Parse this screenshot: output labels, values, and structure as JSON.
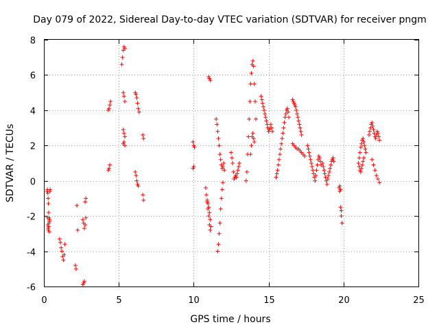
{
  "chart_data": {
    "type": "scatter",
    "title": "Day 079 of 2022, Sidereal Day-to-day VTEC variation (SDTVAR) for receiver pngm",
    "xlabel": "GPS time / hours",
    "ylabel": "SDTVAR / TECUs",
    "xlim": [
      0,
      25
    ],
    "ylim": [
      -6,
      8
    ],
    "xticks": [
      0,
      5,
      10,
      15,
      20,
      25
    ],
    "yticks": [
      -6,
      -4,
      -2,
      0,
      2,
      4,
      6,
      8
    ],
    "xtick_labels": [
      "0",
      "5",
      "10",
      "15",
      "20",
      "25"
    ],
    "ytick_labels": [
      "-6",
      "-4",
      "-2",
      "0",
      "2",
      "4",
      "6",
      "8"
    ],
    "grid": true,
    "marker": "+",
    "color": "#ff0000",
    "series": [
      {
        "name": "SDTVAR",
        "x": [
          0.22,
          0.24,
          0.26,
          0.28,
          0.3,
          0.32,
          0.34,
          0.36,
          0.24,
          0.26,
          0.28,
          0.3,
          0.32,
          0.34,
          0.36,
          0.38,
          0.4,
          0.42,
          1.05,
          1.1,
          1.15,
          1.2,
          1.25,
          1.3,
          1.35,
          1.4,
          2.1,
          2.15,
          2.2,
          2.25,
          2.6,
          2.65,
          2.7,
          2.75,
          2.8,
          2.6,
          2.65,
          2.7,
          2.75,
          2.8,
          4.3,
          4.35,
          4.4,
          4.45,
          4.3,
          4.35,
          4.4,
          5.2,
          5.25,
          5.3,
          5.35,
          5.4,
          5.3,
          5.35,
          5.4,
          5.3,
          5.35,
          5.4,
          5.3,
          5.35,
          5.4,
          6.1,
          6.15,
          6.2,
          6.25,
          6.3,
          6.35,
          6.1,
          6.15,
          6.2,
          6.25,
          6.3,
          6.6,
          6.65,
          6.6,
          6.65,
          9.95,
          10.0,
          10.05,
          9.95,
          10.0,
          10.8,
          10.85,
          10.9,
          10.95,
          11.0,
          11.05,
          11.1,
          11.0,
          11.05,
          11.1,
          10.9,
          10.95,
          11.0,
          11.05,
          11.1,
          11.15,
          11.5,
          11.55,
          11.6,
          11.65,
          11.7,
          11.75,
          11.8,
          11.85,
          11.9,
          11.95,
          12.0,
          12.05,
          11.6,
          11.65,
          11.7,
          11.75,
          11.8,
          11.85,
          11.9,
          11.95,
          12.5,
          12.55,
          12.6,
          12.65,
          12.7,
          12.75,
          12.8,
          12.85,
          12.9,
          12.95,
          13.0,
          13.05,
          13.5,
          13.55,
          13.6,
          13.65,
          13.7,
          13.75,
          13.8,
          13.85,
          13.9,
          13.95,
          14.0,
          14.05,
          14.1,
          14.15,
          13.8,
          13.85,
          13.9,
          13.95,
          14.0,
          14.05,
          14.5,
          14.55,
          14.6,
          14.65,
          14.7,
          14.75,
          14.8,
          14.85,
          14.9,
          14.95,
          15.0,
          15.05,
          15.1,
          15.15,
          15.2,
          15.25,
          15.5,
          15.55,
          15.6,
          15.65,
          15.7,
          15.75,
          15.8,
          15.85,
          15.9,
          15.95,
          16.0,
          16.05,
          16.1,
          16.15,
          16.2,
          16.25,
          16.3,
          16.35,
          16.6,
          16.65,
          16.7,
          16.75,
          16.8,
          16.85,
          16.9,
          16.95,
          17.0,
          17.05,
          17.1,
          17.15,
          17.2,
          16.6,
          16.7,
          16.8,
          16.9,
          17.0,
          17.1,
          17.2,
          17.3,
          17.4,
          17.6,
          17.65,
          17.7,
          17.75,
          17.8,
          17.85,
          17.9,
          17.95,
          18.0,
          18.05,
          18.1,
          18.15,
          18.2,
          18.25,
          18.3,
          18.35,
          18.4,
          18.45,
          18.5,
          18.6,
          18.65,
          18.7,
          18.75,
          18.8,
          18.85,
          18.9,
          18.95,
          19.0,
          19.05,
          19.1,
          19.15,
          19.2,
          19.25,
          19.3,
          19.35,
          19.7,
          19.75,
          19.8,
          19.85,
          19.9,
          19.75,
          19.8,
          19.85,
          21.0,
          21.05,
          21.1,
          21.15,
          21.2,
          21.25,
          21.3,
          21.35,
          21.4,
          21.45,
          21.5,
          21.05,
          21.1,
          21.15,
          21.2,
          21.25,
          21.3,
          21.35,
          21.7,
          21.75,
          21.8,
          21.85,
          21.9,
          21.95,
          22.0,
          22.05,
          22.1,
          22.15,
          22.2,
          22.25,
          22.3,
          22.35,
          22.4,
          21.9,
          22.0,
          22.1,
          22.2,
          22.3,
          22.4
        ],
        "y": [
          -0.6,
          -0.5,
          -0.7,
          -1.0,
          -1.3,
          -1.8,
          -2.1,
          -2.3,
          -2.1,
          -2.5,
          -2.7,
          -2.8,
          -2.6,
          -2.4,
          -2.9,
          -2.2,
          -0.6,
          -0.5,
          -3.3,
          -3.5,
          -3.8,
          -4.0,
          -4.3,
          -4.5,
          -4.2,
          -3.6,
          -4.8,
          -5.0,
          -1.4,
          -2.8,
          -5.9,
          -5.8,
          -5.7,
          -1.2,
          -1.0,
          -2.2,
          -2.4,
          -2.7,
          -2.5,
          -2.1,
          4.0,
          4.1,
          4.3,
          4.5,
          0.6,
          0.7,
          0.9,
          6.6,
          7.0,
          7.4,
          7.6,
          7.5,
          5.0,
          4.8,
          4.5,
          2.9,
          2.7,
          2.5,
          2.1,
          2.2,
          2.0,
          5.0,
          4.9,
          4.7,
          4.4,
          4.1,
          3.9,
          0.5,
          0.3,
          0.0,
          -0.2,
          -0.3,
          2.6,
          2.4,
          -0.8,
          -1.1,
          2.2,
          2.0,
          1.9,
          0.7,
          0.8,
          -0.4,
          -0.8,
          -1.2,
          -1.6,
          -2.0,
          -2.5,
          -2.8,
          5.9,
          5.8,
          5.7,
          -1.1,
          -1.3,
          -1.5,
          -1.8,
          -2.2,
          -2.6,
          3.5,
          3.2,
          2.8,
          2.4,
          2.0,
          1.5,
          1.2,
          0.9,
          0.7,
          0.8,
          1.0,
          0.6,
          -4.0,
          -3.6,
          -3.0,
          -2.4,
          -1.6,
          -1.0,
          -0.5,
          -0.1,
          1.6,
          1.3,
          1.0,
          0.5,
          0.1,
          0.2,
          0.3,
          0.2,
          0.4,
          0.6,
          0.8,
          1.0,
          0.0,
          0.5,
          1.5,
          2.5,
          3.5,
          4.5,
          5.5,
          6.1,
          6.6,
          6.8,
          6.5,
          5.5,
          4.5,
          3.5,
          1.5,
          2.0,
          2.5,
          2.7,
          2.4,
          2.2,
          4.8,
          4.6,
          4.4,
          4.2,
          4.0,
          3.8,
          3.6,
          3.4,
          3.2,
          3.0,
          2.8,
          2.9,
          3.0,
          3.2,
          3.0,
          2.8,
          0.2,
          0.4,
          0.6,
          0.9,
          1.2,
          1.5,
          1.8,
          2.1,
          2.4,
          2.7,
          3.0,
          3.3,
          3.6,
          3.8,
          4.0,
          4.1,
          3.9,
          3.6,
          4.6,
          4.5,
          4.4,
          4.3,
          4.2,
          4.0,
          3.8,
          3.6,
          3.4,
          3.2,
          3.0,
          2.8,
          2.6,
          2.1,
          2.0,
          1.9,
          1.8,
          1.8,
          1.7,
          1.6,
          1.5,
          1.4,
          2.0,
          1.8,
          1.6,
          1.4,
          1.2,
          1.0,
          0.8,
          0.6,
          0.4,
          0.2,
          0.0,
          0.3,
          0.6,
          0.9,
          1.2,
          1.4,
          1.3,
          1.1,
          0.9,
          1.0,
          0.8,
          0.6,
          0.4,
          0.2,
          0.0,
          -0.2,
          0.1,
          0.3,
          0.5,
          0.7,
          0.9,
          1.1,
          1.2,
          1.3,
          1.1,
          -0.4,
          -0.6,
          -1.5,
          -2.0,
          -2.4,
          -0.3,
          -0.5,
          -1.7,
          1.0,
          1.3,
          1.6,
          1.9,
          2.1,
          2.3,
          2.4,
          2.2,
          2.0,
          1.8,
          1.6,
          0.8,
          0.6,
          0.5,
          0.7,
          0.9,
          1.1,
          1.3,
          2.6,
          2.8,
          3.0,
          3.2,
          3.3,
          3.1,
          2.9,
          2.7,
          2.5,
          2.4,
          2.6,
          2.8,
          2.7,
          2.5,
          2.3,
          1.2,
          0.9,
          0.6,
          0.3,
          0.1,
          -0.1
        ]
      }
    ]
  }
}
